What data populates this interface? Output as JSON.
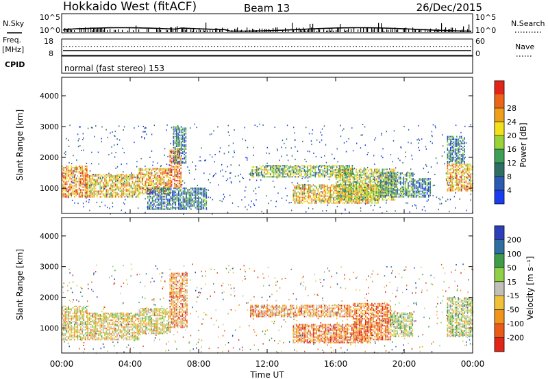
{
  "header": {
    "station": "Hokkaido West (fitACF)",
    "beam": "Beam 13",
    "date": "26/Dec/2015"
  },
  "summary": {
    "nsky_label": "N.Sky",
    "nsky_ticks": [
      "10^5",
      "10^0"
    ],
    "nsearch_label": "N.Search",
    "nsearch_ticks": [
      "10^5",
      "10^0"
    ],
    "freq_label_1": "Freq.",
    "freq_label_2": "[MHz]",
    "freq_ticks": [
      "18",
      "8"
    ],
    "nave_label": "Nave",
    "nave_ticks": [
      "60",
      "0"
    ],
    "cpid_label": "CPID",
    "cpid_value": "normal (fast stereo) 153"
  },
  "chart_data": [
    {
      "type": "heatmap",
      "name": "power",
      "ylabel": "Slant Range [km]",
      "yticks": [
        1000,
        2000,
        3000,
        4000
      ],
      "ylim": [
        180,
        4600
      ],
      "xlim": [
        0,
        24
      ],
      "colorbar": {
        "label": "Power [dB]",
        "ticks": [
          "4",
          "8",
          "12",
          "16",
          "20",
          "24",
          "28"
        ],
        "colors": [
          "#1a3cf0",
          "#2a5bb0",
          "#2f6e64",
          "#3f9f58",
          "#9ad23a",
          "#f4e01a",
          "#f0a018",
          "#ec6418",
          "#e32418"
        ]
      },
      "echo_regions": [
        {
          "t": [
            0.0,
            1.5
          ],
          "r": [
            700,
            1700
          ],
          "level": 0.75
        },
        {
          "t": [
            1.5,
            4.5
          ],
          "r": [
            700,
            1450
          ],
          "level": 0.65
        },
        {
          "t": [
            4.5,
            6.3
          ],
          "r": [
            800,
            1650
          ],
          "level": 0.7
        },
        {
          "t": [
            6.3,
            7.0
          ],
          "r": [
            1000,
            2300
          ],
          "level": 0.85
        },
        {
          "t": [
            6.5,
            7.3
          ],
          "r": [
            1800,
            3000
          ],
          "level": 0.3
        },
        {
          "t": [
            5.0,
            8.5
          ],
          "r": [
            300,
            1000
          ],
          "level": 0.25
        },
        {
          "t": [
            11.0,
            17.0
          ],
          "r": [
            1350,
            1750
          ],
          "level": 0.45
        },
        {
          "t": [
            13.5,
            18.5
          ],
          "r": [
            500,
            1100
          ],
          "level": 0.65
        },
        {
          "t": [
            16.0,
            19.5
          ],
          "r": [
            600,
            1600
          ],
          "level": 0.55
        },
        {
          "t": [
            18.5,
            20.5
          ],
          "r": [
            700,
            1500
          ],
          "level": 0.35
        },
        {
          "t": [
            20.5,
            21.5
          ],
          "r": [
            700,
            1300
          ],
          "level": 0.25
        },
        {
          "t": [
            22.5,
            24.0
          ],
          "r": [
            900,
            1800
          ],
          "level": 0.7
        },
        {
          "t": [
            22.5,
            23.5
          ],
          "r": [
            1800,
            2700
          ],
          "level": 0.3
        }
      ]
    },
    {
      "type": "heatmap",
      "name": "velocity",
      "ylabel": "Slant Range [km]",
      "yticks": [
        1000,
        2000,
        3000,
        4000
      ],
      "ylim": [
        180,
        4600
      ],
      "xlim": [
        0,
        24
      ],
      "colorbar": {
        "label": "Velocity [m s⁻¹]",
        "ticks": [
          "-200",
          "-100",
          "-50",
          "-15",
          "15",
          "50",
          "100",
          "200"
        ],
        "colors": [
          "#e32418",
          "#ec5a18",
          "#f0941a",
          "#f0c23a",
          "#c0c0b8",
          "#8fd048",
          "#3f9a4a",
          "#2f6ea0",
          "#2a3fb8"
        ]
      },
      "echo_regions": [
        {
          "t": [
            0.0,
            1.5
          ],
          "r": [
            600,
            1700
          ],
          "level": 0.45
        },
        {
          "t": [
            1.5,
            4.5
          ],
          "r": [
            600,
            1500
          ],
          "level": 0.45
        },
        {
          "t": [
            4.5,
            6.3
          ],
          "r": [
            800,
            1650
          ],
          "level": 0.45
        },
        {
          "t": [
            6.3,
            7.3
          ],
          "r": [
            1000,
            2800
          ],
          "level": 0.3
        },
        {
          "t": [
            11.0,
            17.0
          ],
          "r": [
            1350,
            1750
          ],
          "level": 0.3
        },
        {
          "t": [
            13.5,
            18.0
          ],
          "r": [
            500,
            1100
          ],
          "level": 0.25
        },
        {
          "t": [
            17.0,
            19.2
          ],
          "r": [
            600,
            1800
          ],
          "level": 0.2
        },
        {
          "t": [
            19.2,
            20.5
          ],
          "r": [
            700,
            1500
          ],
          "level": 0.55
        },
        {
          "t": [
            22.5,
            24.0
          ],
          "r": [
            700,
            2000
          ],
          "level": 0.55
        }
      ]
    }
  ],
  "xaxis": {
    "label": "Time UT",
    "ticks": [
      "00:00",
      "04:00",
      "08:00",
      "12:00",
      "16:00",
      "20:00",
      "00:00"
    ]
  }
}
